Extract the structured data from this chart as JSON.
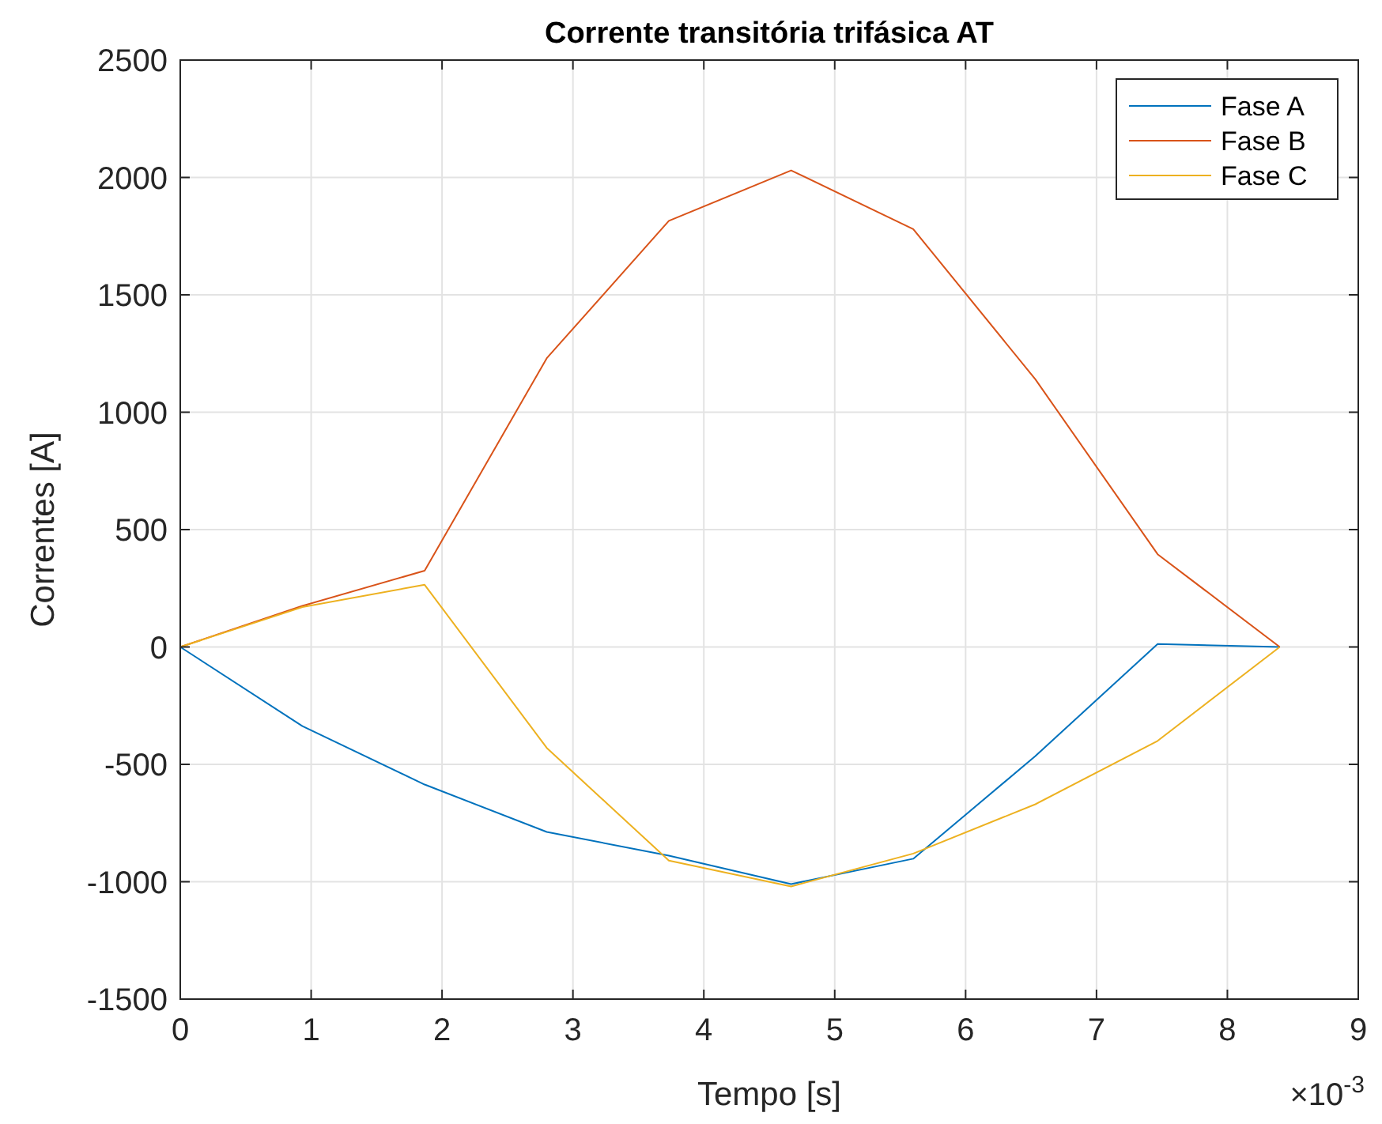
{
  "chart_data": {
    "type": "line",
    "title": "Corrente transitória trifásica AT",
    "xlabel": "Tempo [s]",
    "ylabel": "Correntes [A]",
    "annotations": [
      "×10$^{-3}$"
    ],
    "x": [
      0,
      0.933,
      1.867,
      2.8,
      3.733,
      4.667,
      5.6,
      6.533,
      7.467,
      8.4
    ],
    "series": [
      {
        "name": "Fase A",
        "color": "#0072bd",
        "values": [
          0,
          -337,
          -586,
          -788,
          -889,
          -1010,
          -902,
          -465,
          13,
          0
        ]
      },
      {
        "name": "Fase B",
        "color": "#d95319",
        "values": [
          0,
          175,
          325,
          1230,
          1815,
          2030,
          1780,
          1140,
          395,
          0
        ]
      },
      {
        "name": "Fase C",
        "color": "#edb120",
        "values": [
          0,
          170,
          265,
          -430,
          -910,
          -1020,
          -880,
          -670,
          -400,
          0
        ]
      }
    ],
    "xlim": [
      0,
      9
    ],
    "xticks": [
      0,
      1,
      2,
      3,
      4,
      5,
      6,
      7,
      8,
      9
    ],
    "ylim": [
      -1500,
      2500
    ],
    "yticks": [
      -1500,
      -1000,
      -500,
      0,
      500,
      1000,
      1500,
      2000,
      2500
    ],
    "grid": true,
    "legend": "top right"
  }
}
